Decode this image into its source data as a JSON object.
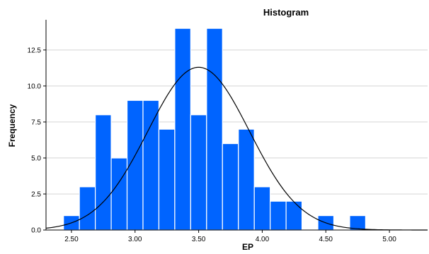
{
  "chart_data": {
    "type": "bar",
    "title": "Histogram",
    "xlabel": "EP",
    "ylabel": "Frequency",
    "bin_width": 0.125,
    "bins": [
      {
        "x": 2.5,
        "count": 1
      },
      {
        "x": 2.625,
        "count": 3
      },
      {
        "x": 2.75,
        "count": 8
      },
      {
        "x": 2.875,
        "count": 5
      },
      {
        "x": 3.0,
        "count": 9
      },
      {
        "x": 3.125,
        "count": 9
      },
      {
        "x": 3.25,
        "count": 7
      },
      {
        "x": 3.375,
        "count": 14
      },
      {
        "x": 3.5,
        "count": 8
      },
      {
        "x": 3.625,
        "count": 14
      },
      {
        "x": 3.75,
        "count": 6
      },
      {
        "x": 3.875,
        "count": 7
      },
      {
        "x": 4.0,
        "count": 3
      },
      {
        "x": 4.125,
        "count": 2
      },
      {
        "x": 4.25,
        "count": 2
      },
      {
        "x": 4.5,
        "count": 1
      },
      {
        "x": 4.75,
        "count": 1
      }
    ],
    "xticks": [
      "2.50",
      "3.00",
      "3.50",
      "4.00",
      "4.50",
      "5.00"
    ],
    "yticks": [
      "0.0",
      "2.5",
      "5.0",
      "7.5",
      "10.0",
      "12.5"
    ],
    "xlim": [
      2.3,
      5.3
    ],
    "ylim": [
      0,
      14.5
    ],
    "normal_curve": {
      "mean": 3.5,
      "sd": 0.4,
      "peak": 11.3
    },
    "bar_color": "#0064ff",
    "grid": "horizontal"
  }
}
